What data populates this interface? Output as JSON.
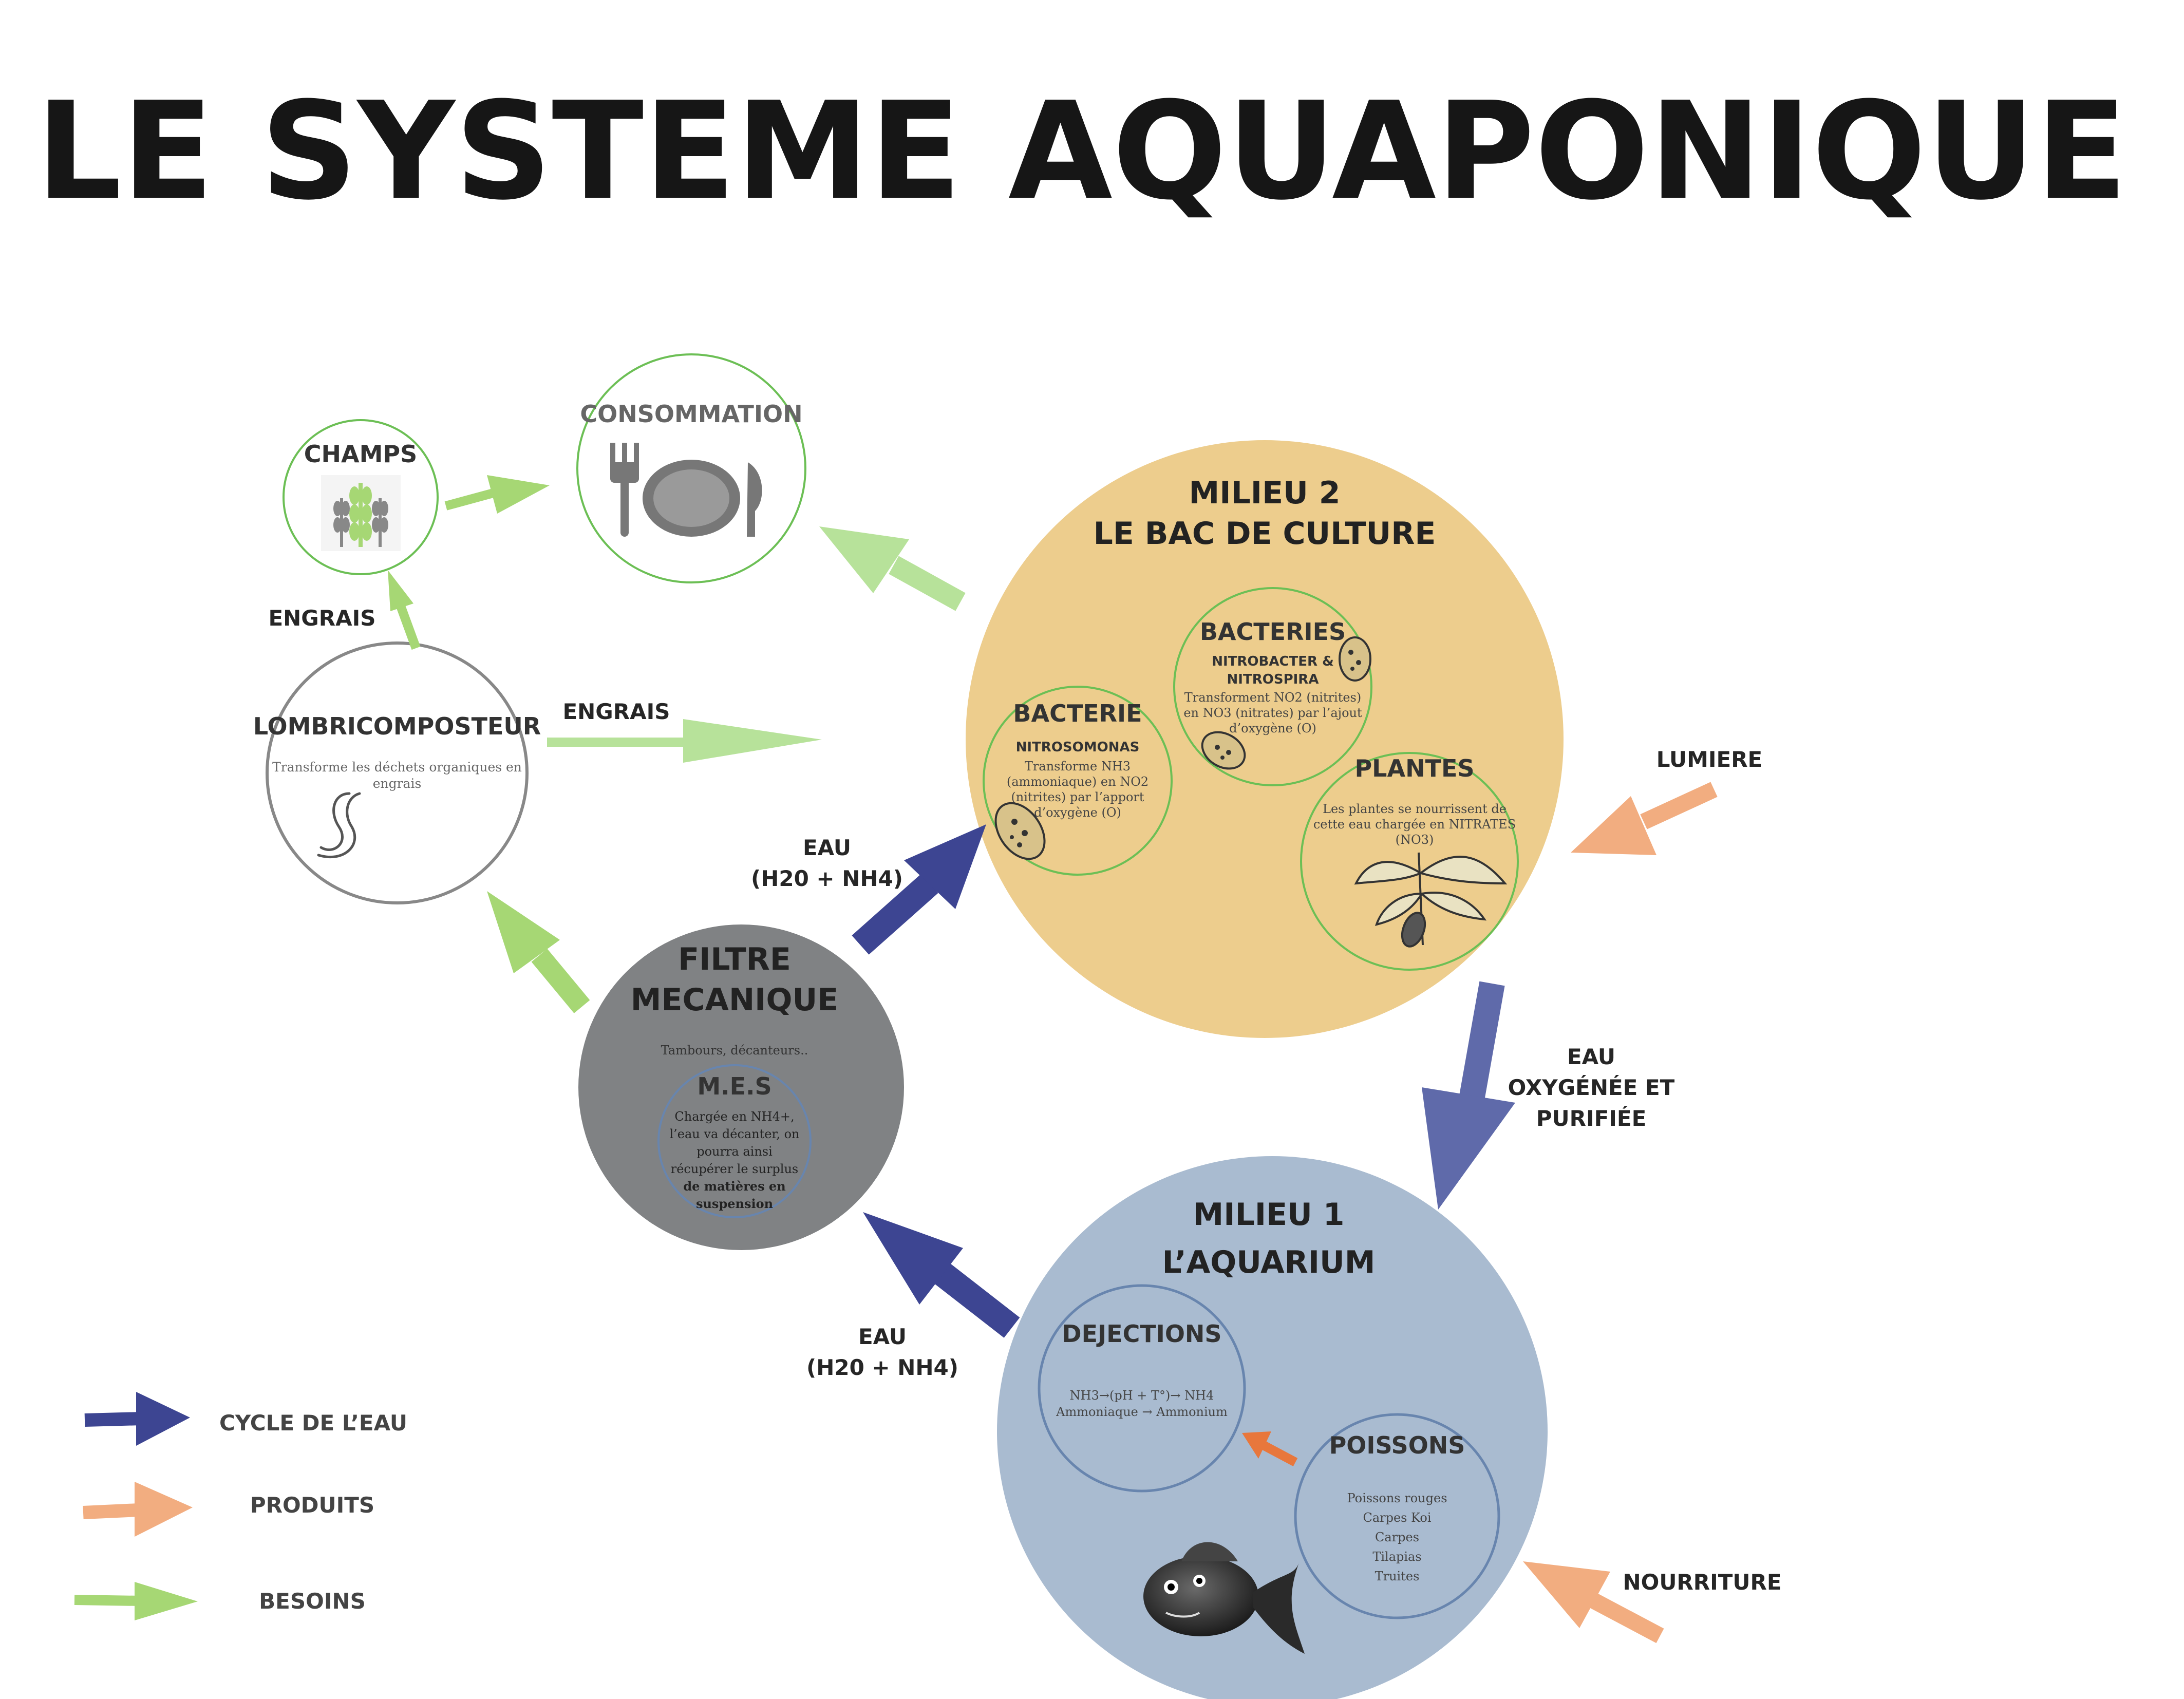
{
  "title": "LE SYSTEME AQUAPONIQUE",
  "colors": {
    "water": "#3d4592",
    "water_light": "#5f6aaa",
    "products": "#f2ad80",
    "products_dark": "#e8773c",
    "needs": "#a6d774",
    "needs_light": "#b7e29a",
    "milieu2": "#edcd8d",
    "milieu1": "#a9bbd0",
    "filtre": "#808284",
    "green_ring": "#6cbf55",
    "blue_ring": "#6885ae"
  },
  "nodes": {
    "milieu2": {
      "title_line1": "MILIEU 2",
      "title_line2": "LE BAC DE CULTURE",
      "bacteries": {
        "title": "BACTERIES",
        "sub1": "NITROBACTER &",
        "sub2": "NITROSPIRA",
        "desc": [
          "Transforment NO2 (nitrites)",
          "en NO3 (nitrates) par l’ajout",
          "d’oxygène (O)"
        ]
      },
      "bacterie": {
        "title": "BACTERIE",
        "sub": "NITROSOMONAS",
        "desc": [
          "Transforme NH3",
          "(ammoniaque) en NO2",
          "(nitrites) par l’apport",
          "d’oxygène (O)"
        ]
      },
      "plantes": {
        "title": "PLANTES",
        "desc": [
          "Les plantes se nourrissent de",
          "cette eau chargée en NITRATES",
          "(NO3)"
        ]
      }
    },
    "milieu1": {
      "title_line1": "MILIEU 1",
      "title_line2": "L’AQUARIUM",
      "dejections": {
        "title": "DEJECTIONS",
        "desc": [
          "NH3→(pH + T°)→ NH4",
          "Ammoniaque → Ammonium"
        ]
      },
      "poissons": {
        "title": "POISSONS",
        "desc": [
          "Poissons rouges",
          "Carpes Koi",
          "Carpes",
          "Tilapias",
          "Truites"
        ]
      }
    },
    "filtre": {
      "title_line1": "FILTRE",
      "title_line2": "MECANIQUE",
      "desc": "Tambours, décanteurs..",
      "mes": {
        "title": "M.E.S",
        "desc": [
          "Chargée en NH4+,",
          "l’eau va décanter, on",
          "pourra ainsi",
          "récupérer le surplus",
          "de matières en",
          "suspension"
        ]
      }
    },
    "lombri": {
      "title": "LOMBRICOMPOSTEUR",
      "desc": [
        "Transforme les déchets organiques en",
        "engrais"
      ]
    },
    "champs": {
      "title": "CHAMPS"
    },
    "consommation": {
      "title": "CONSOMMATION"
    }
  },
  "labels": {
    "engrais_up": "ENGRAIS",
    "engrais_right": "ENGRAIS",
    "eau_up_1": "EAU",
    "eau_up_2": "(H20 + NH4)",
    "eau_down_1": "EAU",
    "eau_down_2": "(H20 + NH4)",
    "eau_oxy_1": "EAU",
    "eau_oxy_2": "OXYGÉNÉE ET",
    "eau_oxy_3": "PURIFIÉE",
    "lumiere": "LUMIERE",
    "nourriture": "NOURRITURE"
  },
  "legend": [
    {
      "label": "CYCLE DE L’EAU",
      "color": "#3d4592"
    },
    {
      "label": "PRODUITS",
      "color": "#f2ad80"
    },
    {
      "label": "BESOINS",
      "color": "#a6d774"
    }
  ]
}
